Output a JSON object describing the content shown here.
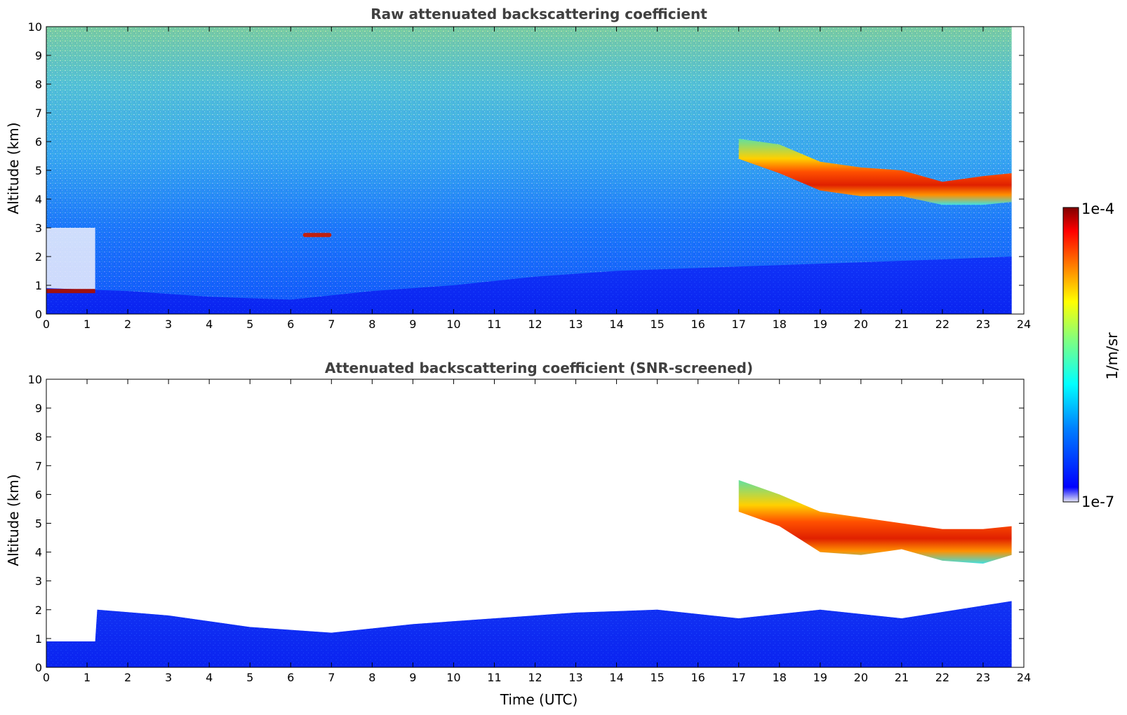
{
  "chart_data": [
    {
      "type": "heatmap",
      "title": "Raw attenuated backscattering coefficient",
      "xlabel": "",
      "ylabel": "Altitude (km)",
      "xlim": [
        0,
        24
      ],
      "ylim": [
        0,
        10
      ],
      "xticks": [
        "0",
        "1",
        "2",
        "3",
        "4",
        "5",
        "6",
        "7",
        "8",
        "9",
        "10",
        "11",
        "12",
        "13",
        "14",
        "15",
        "16",
        "17",
        "18",
        "19",
        "20",
        "21",
        "22",
        "23",
        "24"
      ],
      "yticks": [
        "0",
        "1",
        "2",
        "3",
        "4",
        "5",
        "6",
        "7",
        "8",
        "9",
        "10"
      ],
      "data_end_hour": 23.7,
      "features": {
        "low_cloud_layer": {
          "x": [
            0,
            1.2
          ],
          "altitude_km": 0.8
        },
        "isolated_cloud": {
          "x": [
            6.3,
            7.0
          ],
          "altitude_km": 2.75
        },
        "boundary_layer_top_km": {
          "x": [
            0,
            2,
            4,
            6,
            8,
            10,
            12,
            14,
            16,
            18,
            20,
            22,
            23.7
          ],
          "y": [
            0.9,
            0.8,
            0.6,
            0.5,
            0.8,
            1.0,
            1.3,
            1.5,
            1.6,
            1.7,
            1.8,
            1.9,
            2.0
          ]
        },
        "mid_level_cloud_base_km": {
          "x": [
            17,
            18,
            19,
            20,
            21,
            22,
            23,
            23.7
          ],
          "y": [
            5.4,
            4.9,
            4.3,
            4.1,
            4.1,
            3.8,
            3.8,
            3.9
          ]
        },
        "mid_level_cloud_top_km": {
          "x": [
            17,
            18,
            19,
            20,
            21,
            22,
            23,
            23.7
          ],
          "y": [
            6.1,
            5.9,
            5.3,
            5.1,
            5.0,
            4.6,
            4.8,
            4.9
          ]
        }
      }
    },
    {
      "type": "heatmap",
      "title": "Attenuated backscattering coefficient (SNR-screened)",
      "xlabel": "Time (UTC)",
      "ylabel": "Altitude (km)",
      "xlim": [
        0,
        24
      ],
      "ylim": [
        0,
        10
      ],
      "xticks": [
        "0",
        "1",
        "2",
        "3",
        "4",
        "5",
        "6",
        "7",
        "8",
        "9",
        "10",
        "11",
        "12",
        "13",
        "14",
        "15",
        "16",
        "17",
        "18",
        "19",
        "20",
        "21",
        "22",
        "23",
        "24"
      ],
      "yticks": [
        "0",
        "1",
        "2",
        "3",
        "4",
        "5",
        "6",
        "7",
        "8",
        "9",
        "10"
      ],
      "data_end_hour": 23.7,
      "features": {
        "boundary_layer_top_km": {
          "x": [
            0,
            1.2,
            1.25,
            3,
            5,
            7,
            9,
            11,
            13,
            15,
            17,
            19,
            21,
            23.7
          ],
          "y": [
            0.9,
            0.9,
            2.0,
            1.8,
            1.4,
            1.2,
            1.5,
            1.7,
            1.9,
            2.0,
            1.7,
            2.0,
            1.7,
            2.3
          ]
        },
        "mid_level_cloud_base_km": {
          "x": [
            17,
            18,
            19,
            20,
            21,
            22,
            23,
            23.7
          ],
          "y": [
            5.4,
            4.9,
            4.0,
            3.9,
            4.1,
            3.7,
            3.6,
            3.9
          ]
        },
        "mid_level_cloud_top_km": {
          "x": [
            17,
            18,
            19,
            20,
            21,
            22,
            23,
            23.7
          ],
          "y": [
            6.5,
            6.0,
            5.4,
            5.2,
            5.0,
            4.8,
            4.8,
            4.9
          ]
        }
      }
    }
  ],
  "colorbar": {
    "max_label": "1e-4",
    "min_label": "1e-7",
    "units_label": "1/m/sr",
    "colormap": "jet",
    "colors": [
      "#e6e6f5",
      "#0000ff",
      "#0080ff",
      "#00ffff",
      "#80ff80",
      "#ffff00",
      "#ff8000",
      "#ff0000",
      "#800000"
    ]
  }
}
